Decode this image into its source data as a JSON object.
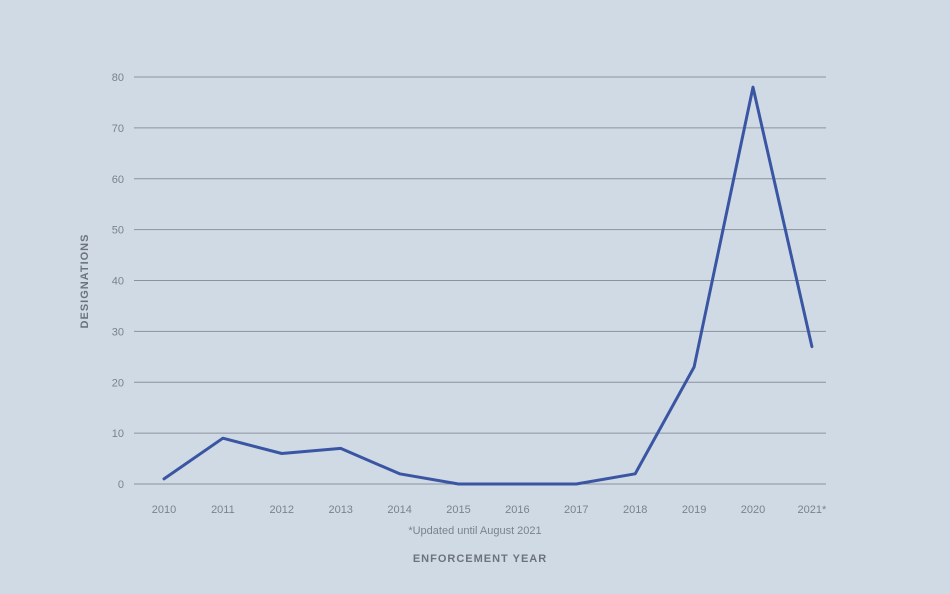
{
  "chart_data": {
    "type": "line",
    "categories": [
      "2010",
      "2011",
      "2012",
      "2013",
      "2014",
      "2015",
      "2016",
      "2017",
      "2018",
      "2019",
      "2020",
      "2021*"
    ],
    "series": [
      {
        "values": [
          1,
          9,
          6,
          7,
          2,
          0,
          0,
          0,
          2,
          23,
          78,
          27
        ]
      }
    ],
    "ylabel": "DESIGNATIONS",
    "xlabel": "ENFORCEMENT YEAR",
    "note": "*Updated until August 2021",
    "ylim": [
      0,
      80
    ],
    "yticks": [
      0,
      10,
      20,
      30,
      40,
      50,
      60,
      70,
      80
    ],
    "grid": true,
    "colors": {
      "line": "#3a56a3",
      "grid": "#8a929e",
      "background": "#d0dae4"
    }
  }
}
